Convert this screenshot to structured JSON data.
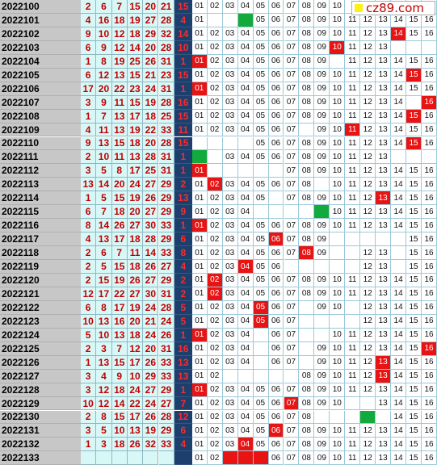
{
  "logo": {
    "text": "cz89.com"
  },
  "rows": [
    {
      "issue": "2022100",
      "reds": [
        2,
        6,
        7,
        15,
        20,
        21
      ],
      "blue": 15,
      "trend": [
        1,
        2,
        3,
        4,
        5,
        6,
        7,
        8,
        9,
        10,
        null,
        null,
        null,
        null,
        null,
        null
      ],
      "hit": [],
      "green": []
    },
    {
      "issue": "2022101",
      "reds": [
        4,
        16,
        18,
        19,
        27,
        28
      ],
      "blue": 4,
      "trend": [
        1,
        null,
        null,
        null,
        5,
        6,
        7,
        8,
        9,
        10,
        11,
        12,
        13,
        14,
        15,
        16
      ],
      "hit": [],
      "green": [
        4
      ]
    },
    {
      "issue": "2022102",
      "reds": [
        9,
        10,
        12,
        18,
        29,
        32
      ],
      "blue": 14,
      "trend": [
        1,
        2,
        3,
        4,
        5,
        6,
        7,
        8,
        9,
        10,
        11,
        12,
        13,
        14,
        15,
        16
      ],
      "hit": [
        14
      ],
      "green": []
    },
    {
      "issue": "2022103",
      "reds": [
        6,
        9,
        12,
        14,
        20,
        28
      ],
      "blue": 10,
      "trend": [
        1,
        2,
        3,
        4,
        5,
        6,
        7,
        8,
        9,
        10,
        11,
        12,
        13,
        null,
        null,
        null
      ],
      "hit": [
        10
      ],
      "green": []
    },
    {
      "issue": "2022104",
      "reds": [
        1,
        8,
        19,
        25,
        26,
        31
      ],
      "blue": 1,
      "trend": [
        1,
        2,
        3,
        4,
        5,
        6,
        7,
        8,
        9,
        null,
        11,
        12,
        13,
        14,
        15,
        16
      ],
      "hit": [
        1
      ],
      "green": []
    },
    {
      "issue": "2022105",
      "reds": [
        6,
        12,
        13,
        15,
        21,
        23
      ],
      "blue": 15,
      "trend": [
        1,
        2,
        3,
        4,
        5,
        6,
        7,
        8,
        9,
        10,
        11,
        12,
        13,
        14,
        15,
        16
      ],
      "hit": [
        15
      ],
      "green": []
    },
    {
      "issue": "2022106",
      "reds": [
        17,
        20,
        22,
        23,
        24,
        31
      ],
      "blue": 1,
      "trend": [
        1,
        2,
        3,
        4,
        5,
        6,
        7,
        8,
        9,
        10,
        11,
        12,
        13,
        14,
        15,
        16
      ],
      "hit": [
        1
      ],
      "green": []
    },
    {
      "issue": "2022107",
      "reds": [
        3,
        9,
        11,
        15,
        19,
        28
      ],
      "blue": 16,
      "trend": [
        1,
        2,
        3,
        4,
        5,
        6,
        7,
        8,
        9,
        10,
        11,
        12,
        13,
        14,
        null,
        16
      ],
      "hit": [
        16
      ],
      "green": []
    },
    {
      "issue": "2022108",
      "reds": [
        1,
        7,
        13,
        17,
        18,
        25
      ],
      "blue": 15,
      "trend": [
        1,
        2,
        3,
        4,
        5,
        6,
        7,
        8,
        9,
        10,
        11,
        12,
        13,
        14,
        15,
        16
      ],
      "hit": [
        15
      ],
      "green": []
    },
    {
      "issue": "2022109",
      "reds": [
        4,
        11,
        13,
        19,
        22,
        33
      ],
      "blue": 11,
      "trend": [
        1,
        2,
        3,
        4,
        5,
        6,
        7,
        null,
        9,
        10,
        11,
        12,
        13,
        14,
        15,
        16
      ],
      "hit": [
        11
      ],
      "green": []
    },
    {
      "issue": "2022110",
      "reds": [
        9,
        13,
        15,
        18,
        20,
        28
      ],
      "blue": 15,
      "trend": [
        null,
        null,
        null,
        null,
        5,
        6,
        7,
        8,
        9,
        10,
        11,
        12,
        13,
        14,
        15,
        16
      ],
      "hit": [
        15
      ],
      "green": []
    },
    {
      "issue": "2022111",
      "reds": [
        2,
        10,
        11,
        13,
        28,
        31
      ],
      "blue": 1,
      "trend": [
        1,
        null,
        3,
        4,
        5,
        6,
        7,
        8,
        9,
        10,
        11,
        12,
        13,
        null,
        null,
        null
      ],
      "hit": [],
      "green": [
        1
      ]
    },
    {
      "issue": "2022112",
      "reds": [
        3,
        5,
        8,
        17,
        25,
        31
      ],
      "blue": 1,
      "trend": [
        1,
        null,
        null,
        null,
        null,
        null,
        7,
        8,
        9,
        10,
        11,
        12,
        13,
        14,
        15,
        16
      ],
      "hit": [
        1
      ],
      "green": []
    },
    {
      "issue": "2022113",
      "reds": [
        13,
        14,
        20,
        24,
        27,
        29
      ],
      "blue": 2,
      "trend": [
        1,
        2,
        3,
        4,
        5,
        6,
        7,
        8,
        null,
        10,
        11,
        12,
        13,
        14,
        15,
        16
      ],
      "hit": [
        2
      ],
      "green": []
    },
    {
      "issue": "2022114",
      "reds": [
        1,
        5,
        15,
        19,
        26,
        29
      ],
      "blue": 13,
      "trend": [
        1,
        2,
        3,
        4,
        5,
        null,
        7,
        8,
        9,
        10,
        11,
        12,
        13,
        14,
        15,
        16
      ],
      "hit": [
        13
      ],
      "green": []
    },
    {
      "issue": "2022115",
      "reds": [
        6,
        7,
        18,
        20,
        27,
        29
      ],
      "blue": 9,
      "trend": [
        1,
        2,
        3,
        4,
        null,
        null,
        null,
        null,
        9,
        10,
        11,
        12,
        13,
        14,
        15,
        16
      ],
      "hit": [],
      "green": [
        9
      ]
    },
    {
      "issue": "2022116",
      "reds": [
        8,
        14,
        26,
        27,
        30,
        33
      ],
      "blue": 1,
      "trend": [
        1,
        2,
        3,
        4,
        5,
        6,
        7,
        8,
        9,
        10,
        11,
        12,
        13,
        14,
        15,
        16
      ],
      "hit": [
        1
      ],
      "green": []
    },
    {
      "issue": "2022117",
      "reds": [
        4,
        13,
        17,
        18,
        28,
        29
      ],
      "blue": 6,
      "trend": [
        1,
        2,
        3,
        4,
        5,
        6,
        7,
        8,
        9,
        null,
        null,
        null,
        null,
        null,
        15,
        16
      ],
      "hit": [
        6
      ],
      "green": []
    },
    {
      "issue": "2022118",
      "reds": [
        2,
        6,
        7,
        11,
        14,
        33
      ],
      "blue": 8,
      "trend": [
        1,
        2,
        3,
        4,
        5,
        6,
        7,
        8,
        9,
        null,
        null,
        12,
        13,
        null,
        15,
        16
      ],
      "hit": [
        8
      ],
      "green": []
    },
    {
      "issue": "2022119",
      "reds": [
        2,
        5,
        15,
        18,
        26,
        27
      ],
      "blue": 4,
      "trend": [
        1,
        2,
        3,
        4,
        5,
        6,
        null,
        null,
        null,
        null,
        null,
        12,
        13,
        null,
        15,
        16
      ],
      "hit": [
        4
      ],
      "green": []
    },
    {
      "issue": "2022120",
      "reds": [
        2,
        15,
        19,
        26,
        27,
        29
      ],
      "blue": 2,
      "trend": [
        1,
        2,
        3,
        4,
        5,
        6,
        7,
        8,
        9,
        10,
        11,
        12,
        13,
        14,
        15,
        16
      ],
      "hit": [
        2
      ],
      "green": []
    },
    {
      "issue": "2022121",
      "reds": [
        12,
        17,
        22,
        27,
        30,
        31
      ],
      "blue": 2,
      "trend": [
        1,
        2,
        3,
        4,
        5,
        6,
        7,
        8,
        9,
        10,
        11,
        12,
        13,
        14,
        15,
        16
      ],
      "hit": [
        2
      ],
      "green": []
    },
    {
      "issue": "2022122",
      "reds": [
        6,
        8,
        17,
        19,
        24,
        28
      ],
      "blue": 5,
      "trend": [
        1,
        2,
        3,
        4,
        5,
        6,
        7,
        null,
        9,
        10,
        null,
        12,
        13,
        14,
        15,
        16
      ],
      "hit": [
        5
      ],
      "green": []
    },
    {
      "issue": "2022123",
      "reds": [
        10,
        13,
        16,
        20,
        21,
        24
      ],
      "blue": 5,
      "trend": [
        1,
        2,
        3,
        4,
        5,
        6,
        7,
        null,
        null,
        null,
        null,
        12,
        13,
        14,
        15,
        16
      ],
      "hit": [
        5
      ],
      "green": []
    },
    {
      "issue": "2022124",
      "reds": [
        5,
        10,
        13,
        18,
        24,
        26
      ],
      "blue": 1,
      "trend": [
        1,
        2,
        3,
        4,
        null,
        6,
        7,
        null,
        null,
        10,
        11,
        12,
        13,
        14,
        15,
        16
      ],
      "hit": [
        1
      ],
      "green": []
    },
    {
      "issue": "2022125",
      "reds": [
        2,
        3,
        7,
        12,
        20,
        31
      ],
      "blue": 16,
      "trend": [
        1,
        2,
        3,
        4,
        null,
        6,
        7,
        null,
        9,
        10,
        11,
        12,
        13,
        14,
        15,
        16
      ],
      "hit": [
        16
      ],
      "green": []
    },
    {
      "issue": "2022126",
      "reds": [
        1,
        13,
        15,
        17,
        26,
        33
      ],
      "blue": 13,
      "trend": [
        1,
        2,
        3,
        4,
        null,
        6,
        7,
        null,
        9,
        10,
        11,
        12,
        13,
        14,
        15,
        16
      ],
      "hit": [
        13
      ],
      "green": []
    },
    {
      "issue": "2022127",
      "reds": [
        3,
        4,
        9,
        10,
        29,
        33
      ],
      "blue": 13,
      "trend": [
        1,
        2,
        null,
        null,
        null,
        null,
        null,
        8,
        9,
        10,
        11,
        12,
        13,
        14,
        15,
        16
      ],
      "hit": [
        13
      ],
      "green": []
    },
    {
      "issue": "2022128",
      "reds": [
        3,
        12,
        18,
        24,
        27,
        29
      ],
      "blue": 1,
      "trend": [
        1,
        2,
        3,
        4,
        5,
        6,
        7,
        8,
        9,
        10,
        11,
        12,
        13,
        14,
        15,
        16
      ],
      "hit": [
        1
      ],
      "green": []
    },
    {
      "issue": "2022129",
      "reds": [
        10,
        12,
        14,
        22,
        24,
        27
      ],
      "blue": 7,
      "trend": [
        1,
        2,
        3,
        4,
        5,
        6,
        7,
        8,
        9,
        10,
        null,
        null,
        13,
        14,
        15,
        16
      ],
      "hit": [
        7
      ],
      "green": []
    },
    {
      "issue": "2022130",
      "reds": [
        2,
        8,
        15,
        17,
        26,
        28
      ],
      "blue": 12,
      "trend": [
        1,
        2,
        3,
        4,
        5,
        6,
        7,
        8,
        null,
        null,
        null,
        12,
        null,
        14,
        15,
        16
      ],
      "hit": [],
      "green": [
        12
      ]
    },
    {
      "issue": "2022131",
      "reds": [
        3,
        5,
        10,
        13,
        19,
        29
      ],
      "blue": 6,
      "trend": [
        1,
        2,
        3,
        4,
        5,
        6,
        7,
        8,
        9,
        10,
        11,
        12,
        13,
        14,
        15,
        16
      ],
      "hit": [
        6
      ],
      "green": []
    },
    {
      "issue": "2022132",
      "reds": [
        1,
        3,
        18,
        26,
        32,
        33
      ],
      "blue": 4,
      "trend": [
        1,
        2,
        3,
        4,
        5,
        6,
        7,
        8,
        9,
        10,
        11,
        12,
        13,
        14,
        15,
        16
      ],
      "hit": [
        4
      ],
      "green": []
    },
    {
      "issue": "2022133",
      "reds": [],
      "blue": null,
      "trend": [
        1,
        2,
        null,
        null,
        null,
        6,
        7,
        8,
        9,
        10,
        11,
        12,
        13,
        14,
        15,
        16
      ],
      "hit": [
        3,
        4,
        5
      ],
      "green": []
    }
  ],
  "colors": {
    "red_cell_bg": "#d8f8f8",
    "blue_col_bg": "#1c3f6e",
    "hit": "#e81414",
    "green": "#12aa3c"
  }
}
